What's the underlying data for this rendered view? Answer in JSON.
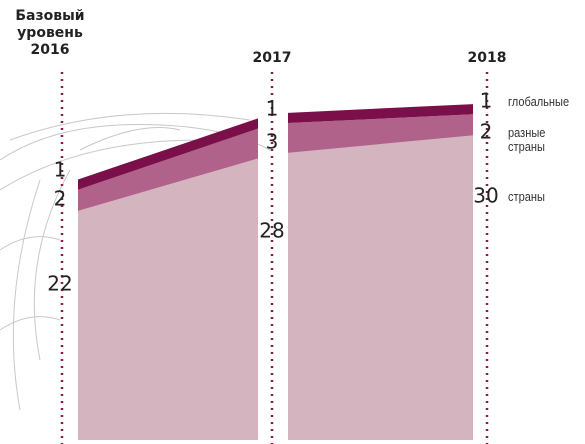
{
  "chart_data": {
    "type": "area",
    "categories": [
      "Базовый уровень 2016",
      "2017",
      "2018"
    ],
    "series": [
      {
        "name": "страны",
        "color": "#d4b4bf",
        "values": [
          22,
          28,
          30
        ]
      },
      {
        "name": "разные страны",
        "color": "#b0628a",
        "values": [
          2,
          3,
          2
        ]
      },
      {
        "name": "глобальные",
        "color": "#7b0f4a",
        "values": [
          1,
          1,
          1
        ]
      }
    ],
    "stacked": true
  }
}
